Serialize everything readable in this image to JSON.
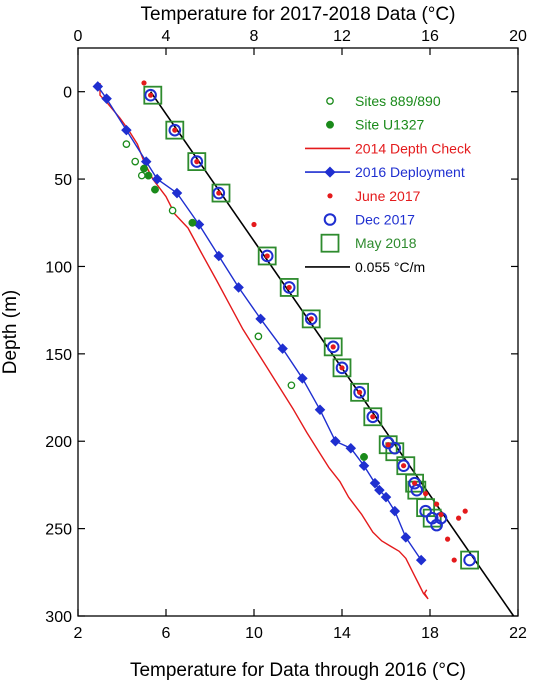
{
  "chart_data": {
    "type": "scatter",
    "title": "",
    "top_axis": {
      "label": "Temperature for 2017-2018 Data (°C)",
      "range": [
        0,
        20
      ],
      "ticks": [
        0,
        4,
        8,
        12,
        16,
        20
      ],
      "tick_labels": [
        "0",
        "4",
        "8",
        "12",
        "16",
        "20"
      ]
    },
    "bottom_axis": {
      "label": "Temperature for Data through 2016 (°C)",
      "range": [
        2,
        22
      ],
      "ticks": [
        2,
        6,
        10,
        14,
        18,
        22
      ],
      "tick_labels": [
        "2",
        "6",
        "10",
        "14",
        "18",
        "22"
      ]
    },
    "y_axis": {
      "label": "Depth (m)",
      "range": [
        -25,
        300
      ],
      "inverted": true,
      "ticks": [
        0,
        50,
        100,
        150,
        200,
        250,
        300
      ],
      "tick_labels": [
        "0",
        "50",
        "100",
        "150",
        "200",
        "250",
        "300"
      ]
    },
    "legend": {
      "placement": "top-right",
      "entries": [
        {
          "label": "Sites 889/890",
          "color": "#1a8a1a",
          "marker": "open-circle"
        },
        {
          "label": "Site U1327",
          "color": "#1a8a1a",
          "marker": "filled-circle"
        },
        {
          "label": "2014 Depth Check",
          "color": "#e41a1c",
          "marker": "line"
        },
        {
          "label": "2016 Deployment",
          "color": "#1f2fd0",
          "marker": "line-diamond"
        },
        {
          "label": "June 2017",
          "color": "#e41a1c",
          "marker": "small-dot"
        },
        {
          "label": "Dec 2017",
          "color": "#1f2fd0",
          "marker": "open-circle"
        },
        {
          "label": "May 2018",
          "color": "#2e8b2e",
          "marker": "open-square"
        },
        {
          "label": "0.055 °C/m",
          "color": "#000000",
          "marker": "line"
        }
      ]
    },
    "series": [
      {
        "name": "Sites 889/890",
        "axis": "bottom",
        "x": [
          4.2,
          4.6,
          4.9,
          6.3,
          10.2,
          11.7
        ],
        "y": [
          30,
          40,
          48,
          68,
          140,
          168
        ]
      },
      {
        "name": "Site U1327",
        "axis": "bottom",
        "x": [
          5.0,
          5.2,
          5.5,
          7.2,
          15.0
        ],
        "y": [
          44,
          48,
          56,
          75,
          209
        ]
      },
      {
        "name": "2014 Depth Check",
        "axis": "bottom",
        "x": [
          3.0,
          3.0,
          3.3,
          3.9,
          4.3,
          4.7,
          5.0,
          5.4,
          6.0,
          6.4,
          7.0,
          7.6,
          8.3,
          8.9,
          9.5,
          10.1,
          10.6,
          11.2,
          11.8,
          12.4,
          12.9,
          13.4,
          13.9,
          14.3,
          14.9,
          15.4,
          15.8,
          16.2,
          16.6,
          16.9,
          17.1,
          17.3,
          17.5,
          17.7,
          17.9,
          17.75,
          17.85
        ],
        "y": [
          -5,
          2,
          6,
          15,
          22,
          30,
          40,
          50,
          60,
          70,
          78,
          92,
          108,
          122,
          136,
          148,
          158,
          170,
          182,
          195,
          205,
          215,
          223,
          232,
          242,
          252,
          257,
          260,
          263,
          267,
          272,
          277,
          282,
          287,
          290,
          287,
          285
        ]
      },
      {
        "name": "2016 Deployment",
        "axis": "bottom",
        "x": [
          2.9,
          3.3,
          4.2,
          5.1,
          5.6,
          6.5,
          7.5,
          8.4,
          9.3,
          10.3,
          11.3,
          12.2,
          13.0,
          13.7,
          14.4,
          15.0,
          15.5,
          15.7,
          16.0,
          16.4,
          16.9,
          17.6
        ],
        "y": [
          -3,
          4,
          22,
          40,
          50,
          58,
          76,
          94,
          112,
          130,
          147,
          164,
          182,
          200,
          204,
          214,
          224,
          228,
          232,
          240,
          255,
          268
        ]
      },
      {
        "name": "June 2017",
        "axis": "top",
        "x": [
          3.0,
          3.3,
          4.4,
          5.4,
          6.4,
          8.0,
          8.6,
          9.6,
          10.6,
          11.6,
          12.0,
          12.8,
          13.4,
          14.1,
          14.8,
          15.3,
          15.8,
          16.3,
          16.5,
          16.8,
          17.1,
          17.3,
          17.6
        ],
        "y": [
          -5,
          2,
          22,
          40,
          58,
          76,
          94,
          112,
          130,
          146,
          158,
          172,
          186,
          202,
          214,
          224,
          230,
          236,
          242,
          256,
          268,
          244,
          240
        ]
      },
      {
        "name": "Dec 2017",
        "axis": "top",
        "x": [
          3.3,
          4.4,
          5.4,
          6.4,
          8.6,
          9.6,
          10.6,
          11.6,
          12.0,
          12.8,
          13.4,
          14.1,
          14.4,
          14.8,
          15.3,
          15.4,
          15.8,
          16.1,
          16.3,
          16.5,
          17.8
        ],
        "y": [
          2,
          22,
          40,
          58,
          94,
          112,
          130,
          146,
          158,
          172,
          186,
          201,
          204,
          214,
          224,
          228,
          240,
          244,
          248,
          244,
          268
        ]
      },
      {
        "name": "May 2018",
        "axis": "top",
        "x": [
          3.4,
          4.4,
          5.4,
          6.5,
          8.6,
          9.6,
          10.6,
          11.6,
          12.0,
          12.8,
          13.4,
          14.1,
          14.4,
          14.9,
          15.3,
          15.4,
          15.8,
          16.1,
          17.8
        ],
        "y": [
          2,
          22,
          40,
          58,
          94,
          112,
          130,
          146,
          158,
          172,
          186,
          202,
          206,
          214,
          224,
          228,
          238,
          244,
          268
        ]
      },
      {
        "name": "0.055 °C/m",
        "axis": "top",
        "x": [
          3.3,
          19.8
        ],
        "y": [
          0,
          300
        ]
      }
    ]
  }
}
